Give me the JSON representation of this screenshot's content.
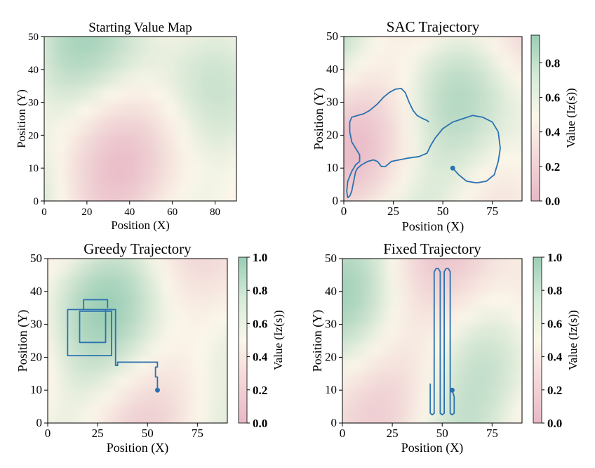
{
  "chart_data": [
    {
      "type": "heatmap",
      "title": "Starting Value Map",
      "xlabel": "Position (X)",
      "ylabel": "Position (Y)",
      "xlim": [
        0,
        90
      ],
      "ylim": [
        0,
        50
      ],
      "xticks": [
        "0",
        "20",
        "40",
        "60",
        "80"
      ],
      "yticks": [
        "0",
        "10",
        "20",
        "30",
        "40",
        "50"
      ],
      "colorbar": null
    },
    {
      "type": "heatmap",
      "title": "SAC Trajectory",
      "xlabel": "Position (X)",
      "ylabel": "Position (Y)",
      "xlim": [
        0,
        90
      ],
      "ylim": [
        0,
        50
      ],
      "xticks": [
        "0",
        "25",
        "50",
        "75"
      ],
      "yticks": [
        "0",
        "10",
        "20",
        "30",
        "40",
        "50"
      ],
      "colorbar": {
        "label": "Value (Iz(s))",
        "ticks": [
          "0.0",
          "0.2",
          "0.4",
          "0.6",
          "0.8"
        ],
        "range": [
          0,
          0.96
        ]
      },
      "start_point": {
        "x": 55,
        "y": 10
      },
      "trajectory": [
        [
          55,
          10
        ],
        [
          58,
          8
        ],
        [
          62,
          6
        ],
        [
          67,
          5.5
        ],
        [
          72,
          6
        ],
        [
          76,
          8
        ],
        [
          78,
          12
        ],
        [
          79,
          16
        ],
        [
          78,
          21
        ],
        [
          75,
          24
        ],
        [
          70,
          25.5
        ],
        [
          65,
          26
        ],
        [
          60,
          25
        ],
        [
          55,
          24
        ],
        [
          50,
          22
        ],
        [
          46,
          19
        ],
        [
          44,
          17
        ],
        [
          42,
          14.5
        ],
        [
          38,
          13.5
        ],
        [
          32,
          13
        ],
        [
          28,
          12.5
        ],
        [
          24,
          12
        ],
        [
          21,
          10.5
        ],
        [
          19,
          10.5
        ],
        [
          17,
          12
        ],
        [
          15,
          12.5
        ],
        [
          12,
          12
        ],
        [
          9,
          11
        ],
        [
          7,
          10
        ],
        [
          6,
          9
        ],
        [
          5,
          6
        ],
        [
          4,
          3
        ],
        [
          3,
          1.5
        ],
        [
          2,
          1
        ],
        [
          1.5,
          3
        ],
        [
          2,
          6
        ],
        [
          4,
          9
        ],
        [
          6,
          11
        ],
        [
          8,
          12
        ],
        [
          8,
          14
        ],
        [
          6,
          16
        ],
        [
          4,
          18
        ],
        [
          3,
          21
        ],
        [
          3,
          24
        ],
        [
          4,
          25.5
        ],
        [
          7,
          26
        ],
        [
          10,
          26.5
        ],
        [
          13,
          27.5
        ],
        [
          17,
          29.5
        ],
        [
          20,
          31.5
        ],
        [
          23,
          33
        ],
        [
          26,
          34
        ],
        [
          29,
          34.2
        ],
        [
          31,
          33
        ],
        [
          33,
          30
        ],
        [
          35,
          27.5
        ],
        [
          37,
          26
        ],
        [
          40,
          25
        ],
        [
          42,
          24.5
        ],
        [
          43,
          24
        ]
      ]
    },
    {
      "type": "heatmap",
      "title": "Greedy Trajectory",
      "xlabel": "Position (X)",
      "ylabel": "Position (Y)",
      "xlim": [
        0,
        90
      ],
      "ylim": [
        0,
        50
      ],
      "xticks": [
        "0",
        "25",
        "50",
        "75"
      ],
      "yticks": [
        "0",
        "10",
        "20",
        "30",
        "40",
        "50"
      ],
      "colorbar": {
        "label": "Value (Iz(s))",
        "ticks": [
          "0.0",
          "0.2",
          "0.4",
          "0.6",
          "0.8",
          "1.0"
        ],
        "range": [
          0,
          1.0
        ]
      },
      "start_point": {
        "x": 55,
        "y": 10
      },
      "trajectory": [
        [
          55,
          10
        ],
        [
          55,
          14
        ],
        [
          54,
          14
        ],
        [
          54,
          17
        ],
        [
          55,
          17
        ],
        [
          55,
          18.5
        ],
        [
          35,
          18.5
        ],
        [
          35,
          17.5
        ],
        [
          34,
          17.5
        ],
        [
          34,
          18.5
        ],
        [
          34,
          34.5
        ],
        [
          10,
          34.5
        ],
        [
          10,
          20.5
        ],
        [
          32,
          20.5
        ],
        [
          32,
          34
        ],
        [
          16,
          34
        ],
        [
          16,
          24.5
        ],
        [
          29,
          24.5
        ],
        [
          29,
          34.5
        ],
        [
          18,
          34.5
        ],
        [
          18,
          37.5
        ],
        [
          30,
          37.5
        ],
        [
          30,
          35
        ]
      ]
    },
    {
      "type": "heatmap",
      "title": "Fixed Trajectory",
      "xlabel": "Position (X)",
      "ylabel": "Position (Y)",
      "xlim": [
        0,
        90
      ],
      "ylim": [
        0,
        50
      ],
      "xticks": [
        "0",
        "25",
        "50",
        "75"
      ],
      "yticks": [
        "0",
        "10",
        "20",
        "30",
        "40",
        "50"
      ],
      "colorbar": {
        "label": "Value (Iz(s))",
        "ticks": [
          "0.0",
          "0.2",
          "0.4",
          "0.6",
          "0.8",
          "1.0"
        ],
        "range": [
          0,
          1.0
        ]
      },
      "start_point": {
        "x": 55,
        "y": 10
      },
      "trajectory": [
        [
          44,
          12
        ],
        [
          44,
          3
        ],
        [
          45,
          2.5
        ],
        [
          46,
          3
        ],
        [
          46,
          46
        ],
        [
          47,
          47
        ],
        [
          48,
          47
        ],
        [
          49,
          46
        ],
        [
          49,
          3
        ],
        [
          50,
          2.5
        ],
        [
          51,
          3
        ],
        [
          51,
          46
        ],
        [
          52,
          47
        ],
        [
          53,
          47
        ],
        [
          54,
          46
        ],
        [
          54,
          3
        ],
        [
          55,
          2.5
        ],
        [
          56,
          3
        ],
        [
          56,
          8
        ],
        [
          55,
          10
        ]
      ]
    }
  ],
  "colors": {
    "trajectory": "#2b72b0",
    "colormap_low": "#e8b8c6",
    "colormap_mid": "#fbf7e9",
    "colormap_high": "#99cdb4"
  }
}
